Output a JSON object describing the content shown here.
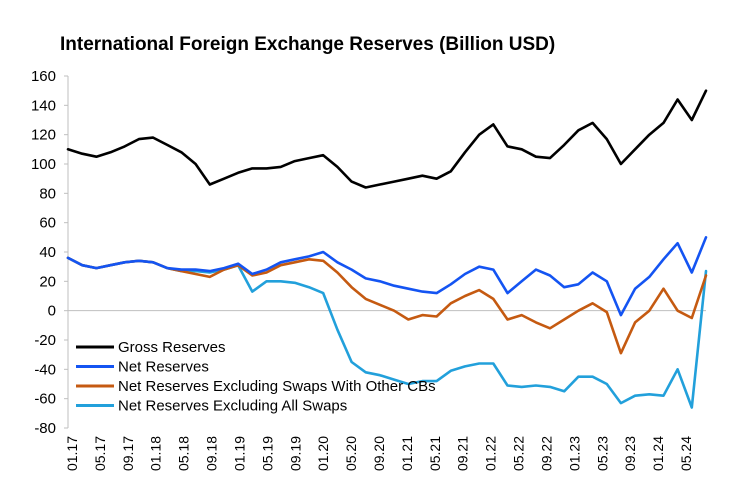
{
  "chart_data": {
    "type": "line",
    "title": "International Foreign Exchange Reserves (Billion USD)",
    "xlabel": "",
    "ylabel": "",
    "ylim": [
      -80,
      160
    ],
    "yticks": [
      160,
      140,
      120,
      100,
      80,
      60,
      40,
      20,
      0,
      -20,
      -40,
      -60,
      -80
    ],
    "x_tick_labels": [
      "01.17",
      "05.17",
      "09.17",
      "01.18",
      "05.18",
      "09.18",
      "01.19",
      "05.19",
      "09.19",
      "01.20",
      "05.20",
      "09.20",
      "01.21",
      "05.21",
      "09.21",
      "01.22",
      "05.22",
      "09.22",
      "01.23",
      "05.23",
      "09.23",
      "01.24",
      "05.24"
    ],
    "legend_position": "bottom-left",
    "grid": false,
    "x": [
      "01.17",
      "03.17",
      "05.17",
      "07.17",
      "09.17",
      "11.17",
      "01.18",
      "03.18",
      "05.18",
      "07.18",
      "09.18",
      "11.18",
      "01.19",
      "03.19",
      "05.19",
      "07.19",
      "09.19",
      "11.19",
      "01.20",
      "03.20",
      "05.20",
      "07.20",
      "09.20",
      "11.20",
      "01.21",
      "03.21",
      "05.21",
      "07.21",
      "09.21",
      "11.21",
      "01.22",
      "03.22",
      "05.22",
      "07.22",
      "09.22",
      "11.22",
      "01.23",
      "03.23",
      "05.23",
      "07.23",
      "09.23",
      "11.23",
      "01.24",
      "03.24",
      "05.24",
      "07.24"
    ],
    "series": [
      {
        "name": "Gross Reserves",
        "color": "#000000",
        "values": [
          110,
          107,
          105,
          108,
          112,
          117,
          118,
          113,
          108,
          100,
          86,
          90,
          94,
          97,
          97,
          98,
          102,
          104,
          106,
          98,
          88,
          84,
          86,
          88,
          90,
          92,
          90,
          95,
          108,
          120,
          127,
          112,
          110,
          105,
          104,
          113,
          123,
          128,
          117,
          100,
          110,
          120,
          128,
          144,
          130,
          150
        ]
      },
      {
        "name": "Net Reserves",
        "color": "#1454f2",
        "values": [
          36,
          31,
          29,
          31,
          33,
          34,
          33,
          29,
          28,
          28,
          27,
          29,
          32,
          25,
          28,
          33,
          35,
          37,
          40,
          33,
          28,
          22,
          20,
          17,
          15,
          13,
          12,
          18,
          25,
          30,
          28,
          12,
          20,
          28,
          24,
          16,
          18,
          26,
          20,
          -3,
          15,
          23,
          35,
          46,
          26,
          50
        ]
      },
      {
        "name": "Net Reserves Excluding Swaps With Other CBs",
        "color": "#c55a11",
        "values": [
          36,
          31,
          29,
          31,
          33,
          34,
          33,
          29,
          27,
          25,
          23,
          28,
          31,
          24,
          26,
          31,
          33,
          35,
          34,
          26,
          16,
          8,
          4,
          0,
          -6,
          -3,
          -4,
          5,
          10,
          14,
          8,
          -6,
          -3,
          -8,
          -12,
          -6,
          0,
          5,
          -1,
          -29,
          -8,
          0,
          15,
          0,
          -5,
          24
        ]
      },
      {
        "name": "Net Reserves Excluding All Swaps",
        "color": "#22a0db",
        "values": [
          36,
          31,
          29,
          31,
          33,
          34,
          33,
          29,
          27,
          27,
          26,
          28,
          31,
          13,
          20,
          20,
          19,
          16,
          12,
          -13,
          -35,
          -42,
          -44,
          -47,
          -50,
          -48,
          -48,
          -41,
          -38,
          -36,
          -36,
          -51,
          -52,
          -51,
          -52,
          -55,
          -45,
          -45,
          -50,
          -63,
          -58,
          -57,
          -58,
          -40,
          -66,
          27
        ]
      }
    ]
  }
}
